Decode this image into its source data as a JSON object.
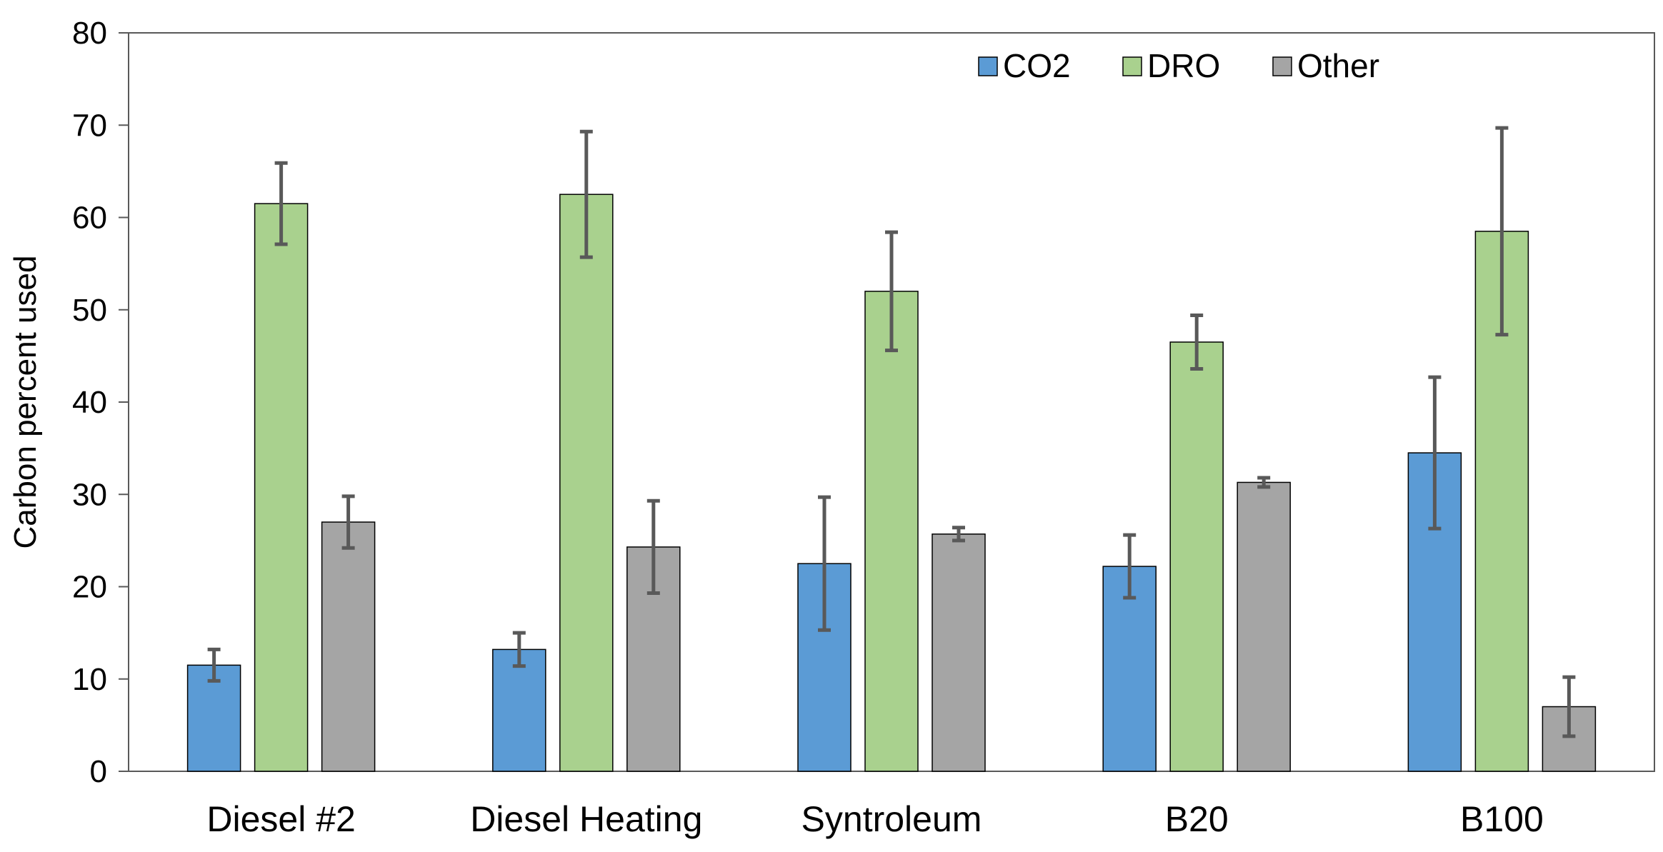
{
  "chart_data": {
    "type": "bar",
    "title": "",
    "xlabel": "",
    "ylabel": "Carbon percent used",
    "ylim": [
      0,
      80
    ],
    "yticks": [
      0,
      10,
      20,
      30,
      40,
      50,
      60,
      70,
      80
    ],
    "grid": false,
    "legend_position": "top-right",
    "categories": [
      "Diesel #2",
      "Diesel Heating",
      "Syntroleum",
      "B20",
      "B100"
    ],
    "series": [
      {
        "name": "CO2",
        "color": "#5b9bd5",
        "values": [
          11.5,
          13.2,
          22.5,
          22.2,
          34.5
        ],
        "errors": [
          1.7,
          1.8,
          7.2,
          3.4,
          8.2
        ]
      },
      {
        "name": "DRO",
        "color": "#a9d18e",
        "values": [
          61.5,
          62.5,
          52.0,
          46.5,
          58.5
        ],
        "errors": [
          4.4,
          6.8,
          6.4,
          2.9,
          11.2
        ]
      },
      {
        "name": "Other",
        "color": "#a5a5a5",
        "values": [
          27.0,
          24.3,
          25.7,
          31.3,
          7.0
        ],
        "errors": [
          2.8,
          5.0,
          0.7,
          0.5,
          3.2
        ]
      }
    ]
  }
}
